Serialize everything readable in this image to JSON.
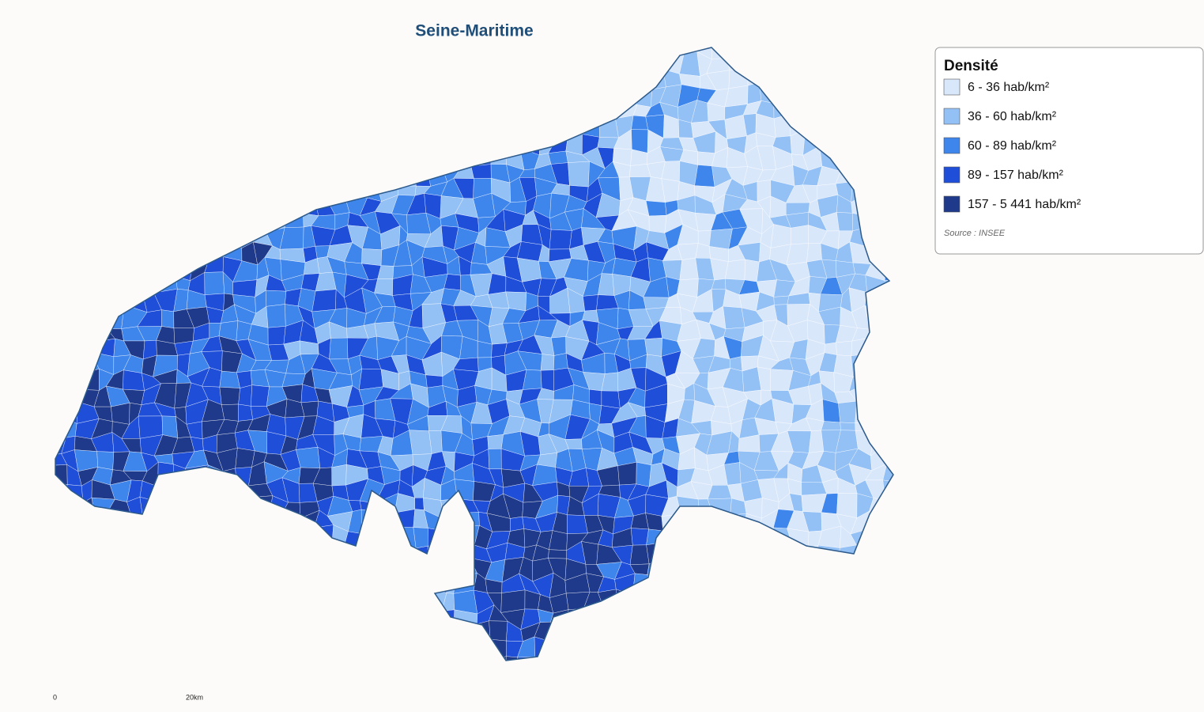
{
  "title": "Seine-Maritime",
  "legend": {
    "title": "Densité",
    "items": [
      {
        "label": "6 - 36 hab/km²",
        "color": "#d9e7fb"
      },
      {
        "label": "36 - 60 hab/km²",
        "color": "#93c0f5"
      },
      {
        "label": "60 - 89 hab/km²",
        "color": "#3f86ec"
      },
      {
        "label": "89 - 157 hab/km²",
        "color": "#1f4fd8"
      },
      {
        "label": "157 - 5 441 hab/km²",
        "color": "#1f3a8a"
      }
    ],
    "source": "Source : INSEE"
  },
  "scale": {
    "start": "0",
    "end": "20km"
  }
}
